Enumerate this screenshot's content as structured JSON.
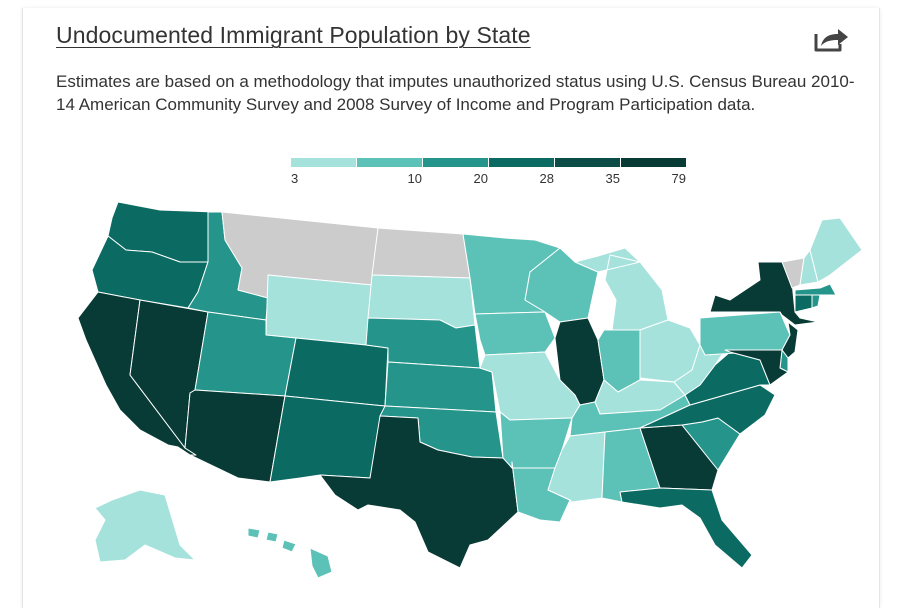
{
  "header": {
    "title": "Undocumented Immigrant Population by State",
    "description": "Estimates are based on a methodology that imputes unauthorized status using U.S. Census Bureau 2010-14 American Community Survey and 2008 Survey of Income and Program Participation data.",
    "share_icon": "share-arrow-icon"
  },
  "legend": {
    "breaks": [
      "3",
      "10",
      "20",
      "28",
      "35",
      "79"
    ],
    "colors": [
      "#a5e2dc",
      "#5cc1b7",
      "#25958b",
      "#0b6b63",
      "#0b4d46",
      "#083b35"
    ]
  },
  "map": {
    "no_data_color": "#cccccc",
    "states": [
      {
        "id": "WA",
        "name": "Washington",
        "color_class": 3
      },
      {
        "id": "OR",
        "name": "Oregon",
        "color_class": 3
      },
      {
        "id": "CA",
        "name": "California",
        "color_class": 5
      },
      {
        "id": "NV",
        "name": "Nevada",
        "color_class": 5
      },
      {
        "id": "ID",
        "name": "Idaho",
        "color_class": 2
      },
      {
        "id": "MT",
        "name": "Montana",
        "color_class": null
      },
      {
        "id": "WY",
        "name": "Wyoming",
        "color_class": 0
      },
      {
        "id": "UT",
        "name": "Utah",
        "color_class": 2
      },
      {
        "id": "AZ",
        "name": "Arizona",
        "color_class": 5
      },
      {
        "id": "CO",
        "name": "Colorado",
        "color_class": 3
      },
      {
        "id": "NM",
        "name": "New Mexico",
        "color_class": 3
      },
      {
        "id": "ND",
        "name": "North Dakota",
        "color_class": null
      },
      {
        "id": "SD",
        "name": "South Dakota",
        "color_class": 0
      },
      {
        "id": "NE",
        "name": "Nebraska",
        "color_class": 2
      },
      {
        "id": "KS",
        "name": "Kansas",
        "color_class": 2
      },
      {
        "id": "OK",
        "name": "Oklahoma",
        "color_class": 2
      },
      {
        "id": "TX",
        "name": "Texas",
        "color_class": 5
      },
      {
        "id": "MN",
        "name": "Minnesota",
        "color_class": 1
      },
      {
        "id": "IA",
        "name": "Iowa",
        "color_class": 1
      },
      {
        "id": "MO",
        "name": "Missouri",
        "color_class": 0
      },
      {
        "id": "AR",
        "name": "Arkansas",
        "color_class": 1
      },
      {
        "id": "LA",
        "name": "Louisiana",
        "color_class": 1
      },
      {
        "id": "WI",
        "name": "Wisconsin",
        "color_class": 1
      },
      {
        "id": "IL",
        "name": "Illinois",
        "color_class": 5
      },
      {
        "id": "MI",
        "name": "Michigan",
        "color_class": 0
      },
      {
        "id": "IN",
        "name": "Indiana",
        "color_class": 1
      },
      {
        "id": "OH",
        "name": "Ohio",
        "color_class": 0
      },
      {
        "id": "KY",
        "name": "Kentucky",
        "color_class": 0
      },
      {
        "id": "TN",
        "name": "Tennessee",
        "color_class": 1
      },
      {
        "id": "MS",
        "name": "Mississippi",
        "color_class": 0
      },
      {
        "id": "AL",
        "name": "Alabama",
        "color_class": 1
      },
      {
        "id": "GA",
        "name": "Georgia",
        "color_class": 5
      },
      {
        "id": "FL",
        "name": "Florida",
        "color_class": 3
      },
      {
        "id": "SC",
        "name": "South Carolina",
        "color_class": 2
      },
      {
        "id": "NC",
        "name": "North Carolina",
        "color_class": 3
      },
      {
        "id": "VA",
        "name": "Virginia",
        "color_class": 3
      },
      {
        "id": "WV",
        "name": "West Virginia",
        "color_class": 0
      },
      {
        "id": "PA",
        "name": "Pennsylvania",
        "color_class": 1
      },
      {
        "id": "NY",
        "name": "New York",
        "color_class": 5
      },
      {
        "id": "NJ",
        "name": "New Jersey",
        "color_class": 5
      },
      {
        "id": "DE",
        "name": "Delaware",
        "color_class": 2
      },
      {
        "id": "MD",
        "name": "Maryland",
        "color_class": 5
      },
      {
        "id": "CT",
        "name": "Connecticut",
        "color_class": 3
      },
      {
        "id": "RI",
        "name": "Rhode Island",
        "color_class": 2
      },
      {
        "id": "MA",
        "name": "Massachusetts",
        "color_class": 2
      },
      {
        "id": "VT",
        "name": "Vermont",
        "color_class": null
      },
      {
        "id": "NH",
        "name": "New Hampshire",
        "color_class": 0
      },
      {
        "id": "ME",
        "name": "Maine",
        "color_class": 0
      },
      {
        "id": "AK",
        "name": "Alaska",
        "color_class": 0
      },
      {
        "id": "HI",
        "name": "Hawaii",
        "color_class": 1
      }
    ]
  }
}
